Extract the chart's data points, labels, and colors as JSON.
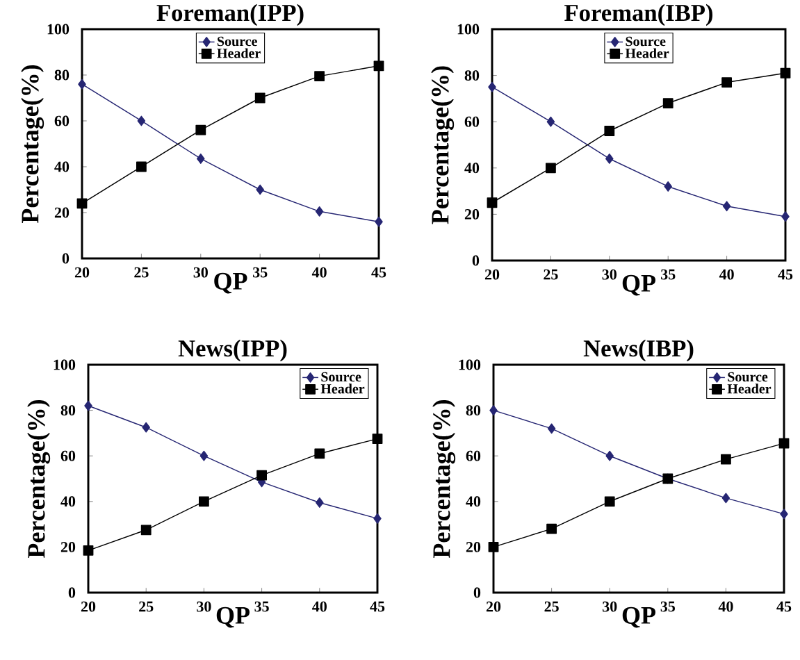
{
  "chart_data": [
    {
      "type": "line",
      "title": "Foreman(IPP)",
      "xlabel": "QP",
      "ylabel": "Percentage(%)",
      "x": [
        20,
        25,
        30,
        35,
        40,
        45
      ],
      "xlim": [
        20,
        45
      ],
      "xticks": [
        20,
        25,
        30,
        35,
        40,
        45
      ],
      "ylim": [
        0,
        100
      ],
      "yticks": [
        0,
        20,
        40,
        60,
        80,
        100
      ],
      "legend": "top",
      "series": [
        {
          "name": "Source",
          "color": "#262673",
          "marker": "diamond",
          "values": [
            76,
            60,
            43.5,
            30,
            20.5,
            16
          ]
        },
        {
          "name": "Header",
          "color": "#000000",
          "marker": "square",
          "values": [
            24,
            40,
            56,
            70,
            79.5,
            84
          ]
        }
      ]
    },
    {
      "type": "line",
      "title": "Foreman(IBP)",
      "xlabel": "QP",
      "ylabel": "Percentage(%)",
      "x": [
        20,
        25,
        30,
        35,
        40,
        45
      ],
      "xlim": [
        20,
        45
      ],
      "xticks": [
        20,
        25,
        30,
        35,
        40,
        45
      ],
      "ylim": [
        0,
        100
      ],
      "yticks": [
        0,
        20,
        40,
        60,
        80,
        100
      ],
      "legend": "top",
      "series": [
        {
          "name": "Source",
          "color": "#262673",
          "marker": "diamond",
          "values": [
            75,
            60,
            44,
            32,
            23.5,
            19
          ]
        },
        {
          "name": "Header",
          "color": "#000000",
          "marker": "square",
          "values": [
            25,
            40,
            56,
            68,
            77,
            81
          ]
        }
      ]
    },
    {
      "type": "line",
      "title": "News(IPP)",
      "xlabel": "QP",
      "ylabel": "Percentage(%)",
      "x": [
        20,
        25,
        30,
        35,
        40,
        45
      ],
      "xlim": [
        20,
        45
      ],
      "xticks": [
        20,
        25,
        30,
        35,
        40,
        45
      ],
      "ylim": [
        0,
        100
      ],
      "yticks": [
        0,
        20,
        40,
        60,
        80,
        100
      ],
      "legend": "top right",
      "series": [
        {
          "name": "Source",
          "color": "#262673",
          "marker": "diamond",
          "values": [
            82,
            72.5,
            60,
            48.5,
            39.5,
            32.5
          ]
        },
        {
          "name": "Header",
          "color": "#000000",
          "marker": "square",
          "values": [
            18.5,
            27.5,
            40,
            51.5,
            61,
            67.5
          ]
        }
      ]
    },
    {
      "type": "line",
      "title": "News(IBP)",
      "xlabel": "QP",
      "ylabel": "Percentage(%)",
      "x": [
        20,
        25,
        30,
        35,
        40,
        45
      ],
      "xlim": [
        20,
        45
      ],
      "xticks": [
        20,
        25,
        30,
        35,
        40,
        45
      ],
      "ylim": [
        0,
        100
      ],
      "yticks": [
        0,
        20,
        40,
        60,
        80,
        100
      ],
      "legend": "top right",
      "series": [
        {
          "name": "Source",
          "color": "#262673",
          "marker": "diamond",
          "values": [
            80,
            72,
            60,
            50,
            41.5,
            34.5
          ]
        },
        {
          "name": "Header",
          "color": "#000000",
          "marker": "square",
          "values": [
            20,
            28,
            40,
            50,
            58.5,
            65.5
          ]
        }
      ]
    }
  ]
}
